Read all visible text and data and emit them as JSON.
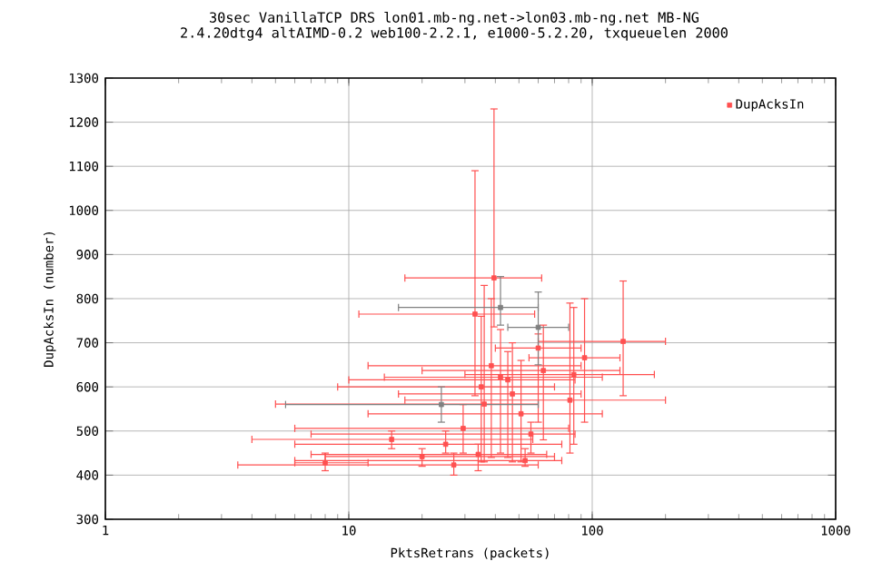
{
  "chart_data": {
    "type": "scatter",
    "title": "30sec VanillaTCP DRS lon01.mb-ng.net->lon03.mb-ng.net MB-NG",
    "subtitle": "2.4.20dtg4 altAIMD-0.2 web100-2.2.1, e1000-5.2.20, txqueuelen 2000",
    "xlabel": "PktsRetrans (packets)",
    "ylabel": "DupAcksIn (number)",
    "log": "x",
    "xlim": [
      1,
      1000
    ],
    "xticks": [
      1,
      10,
      100,
      1000
    ],
    "ylim": [
      300,
      1300
    ],
    "yticks": [
      300,
      400,
      500,
      600,
      700,
      800,
      900,
      1000,
      1100,
      1200,
      1300
    ],
    "grid": true,
    "legend": "top right",
    "marker": "square",
    "series": [
      {
        "name": "DupAcksIn",
        "color": "#ff5050",
        "x": [
          39.5,
          33,
          134,
          93,
          63,
          84,
          47,
          81,
          36,
          51,
          29.5,
          15,
          56,
          20,
          27,
          53,
          34,
          8,
          38.5,
          42,
          35,
          45,
          60,
          25
        ],
        "values": [
          847,
          765,
          703,
          666,
          637,
          628,
          584,
          570,
          561,
          539,
          506,
          481,
          493,
          442,
          423,
          433,
          447,
          428,
          648,
          622,
          600,
          616,
          688,
          470
        ],
        "xerrors": [
          [
            17,
            62
          ],
          [
            11,
            58
          ],
          [
            60,
            200
          ],
          [
            55,
            130
          ],
          [
            20,
            130
          ],
          [
            30,
            180
          ],
          [
            16,
            90
          ],
          [
            17,
            200
          ],
          [
            5,
            60
          ],
          [
            12,
            110
          ],
          [
            6,
            80
          ],
          [
            4,
            57
          ],
          [
            7,
            85
          ],
          [
            8,
            70
          ],
          [
            3.5,
            60
          ],
          [
            6,
            75
          ],
          [
            7,
            65
          ],
          [
            6,
            12
          ],
          [
            12,
            90
          ],
          [
            14,
            110
          ],
          [
            9,
            70
          ],
          [
            10,
            85
          ],
          [
            40,
            90
          ],
          [
            6,
            75
          ]
        ],
        "errors": [
          [
            736,
            1230
          ],
          [
            580,
            1090
          ],
          [
            580,
            840
          ],
          [
            520,
            800
          ],
          [
            480,
            740
          ],
          [
            470,
            780
          ],
          [
            430,
            700
          ],
          [
            450,
            790
          ],
          [
            430,
            830
          ],
          [
            430,
            660
          ],
          [
            450,
            560
          ],
          [
            460,
            500
          ],
          [
            450,
            520
          ],
          [
            420,
            460
          ],
          [
            400,
            450
          ],
          [
            420,
            460
          ],
          [
            410,
            470
          ],
          [
            410,
            450
          ],
          [
            440,
            800
          ],
          [
            450,
            730
          ],
          [
            430,
            760
          ],
          [
            440,
            680
          ],
          [
            520,
            720
          ],
          [
            450,
            500
          ]
        ]
      },
      {
        "color": "#808080",
        "x": [
          24,
          60,
          42
        ],
        "values": [
          560,
          735,
          780
        ],
        "xerrors": [
          [
            5.5,
            60
          ],
          [
            45,
            80
          ],
          [
            16,
            60
          ]
        ],
        "errors": [
          [
            520,
            600
          ],
          [
            650,
            815
          ],
          [
            740,
            850
          ]
        ]
      }
    ]
  }
}
